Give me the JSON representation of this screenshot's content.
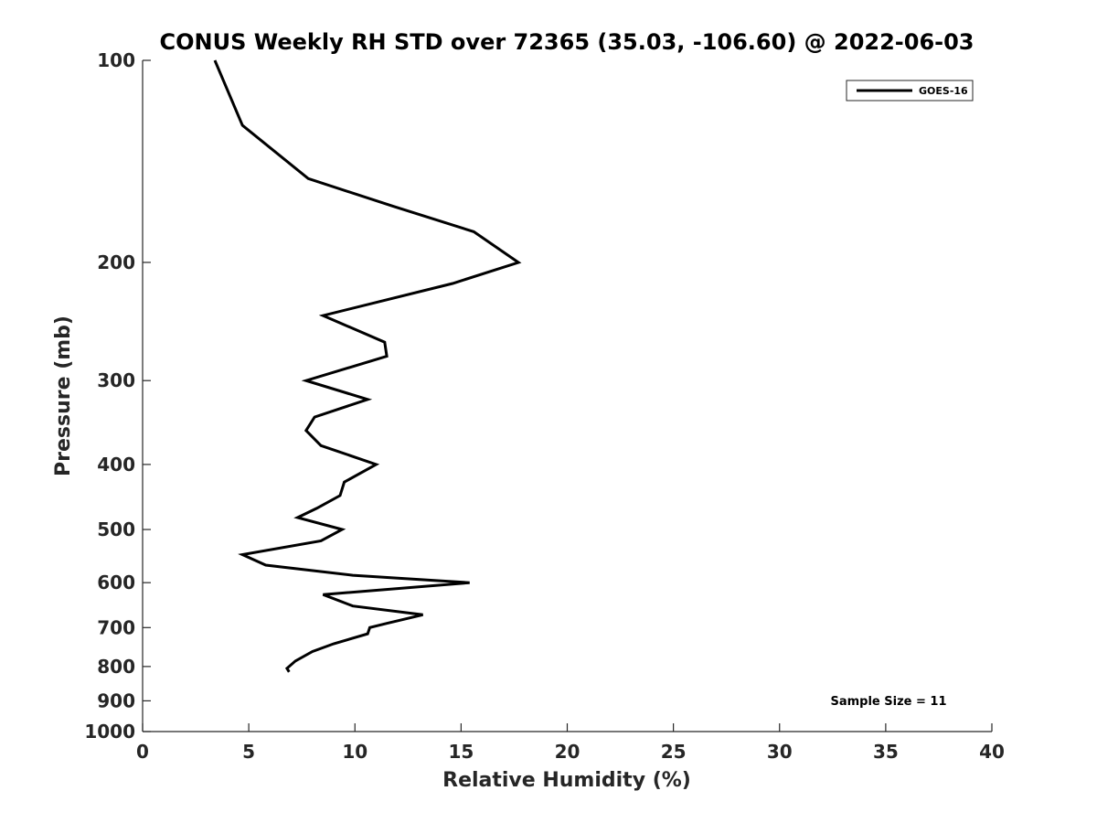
{
  "chart_data": {
    "type": "line",
    "title": "CONUS Weekly RH STD over 72365 (35.03, -106.60) @ 2022-06-03",
    "xlabel": "Relative Humidity (%)",
    "ylabel": "Pressure (mb)",
    "xlim": [
      0,
      40
    ],
    "ylim": [
      1000,
      100
    ],
    "y_scale": "log",
    "x_ticks": [
      "0",
      "5",
      "10",
      "15",
      "20",
      "25",
      "30",
      "35",
      "40"
    ],
    "y_ticks": [
      "100",
      "200",
      "300",
      "400",
      "500",
      "600",
      "700",
      "800",
      "900",
      "1000"
    ],
    "grid": false,
    "legend_position": "top-right",
    "series": [
      {
        "name": "GOES-16",
        "color": "#000000",
        "points": [
          {
            "x": 3.4,
            "p": 100
          },
          {
            "x": 4.7,
            "p": 125
          },
          {
            "x": 7.8,
            "p": 150
          },
          {
            "x": 11.8,
            "p": 165
          },
          {
            "x": 15.6,
            "p": 180
          },
          {
            "x": 17.7,
            "p": 200
          },
          {
            "x": 14.6,
            "p": 215
          },
          {
            "x": 8.5,
            "p": 240
          },
          {
            "x": 11.4,
            "p": 263
          },
          {
            "x": 11.5,
            "p": 276
          },
          {
            "x": 7.7,
            "p": 300
          },
          {
            "x": 10.6,
            "p": 320
          },
          {
            "x": 8.1,
            "p": 340
          },
          {
            "x": 7.7,
            "p": 356
          },
          {
            "x": 8.4,
            "p": 375
          },
          {
            "x": 11.0,
            "p": 400
          },
          {
            "x": 9.5,
            "p": 425
          },
          {
            "x": 9.3,
            "p": 445
          },
          {
            "x": 8.2,
            "p": 465
          },
          {
            "x": 7.3,
            "p": 480
          },
          {
            "x": 9.4,
            "p": 500
          },
          {
            "x": 8.4,
            "p": 520
          },
          {
            "x": 4.7,
            "p": 545
          },
          {
            "x": 5.8,
            "p": 565
          },
          {
            "x": 9.9,
            "p": 585
          },
          {
            "x": 15.4,
            "p": 600
          },
          {
            "x": 8.5,
            "p": 625
          },
          {
            "x": 9.9,
            "p": 650
          },
          {
            "x": 13.2,
            "p": 670
          },
          {
            "x": 11.5,
            "p": 690
          },
          {
            "x": 10.7,
            "p": 700
          },
          {
            "x": 10.6,
            "p": 715
          },
          {
            "x": 9.0,
            "p": 740
          },
          {
            "x": 8.0,
            "p": 760
          },
          {
            "x": 7.2,
            "p": 785
          },
          {
            "x": 6.8,
            "p": 805
          },
          {
            "x": 6.9,
            "p": 815
          }
        ]
      }
    ],
    "annotation": "Sample Size = 11"
  }
}
